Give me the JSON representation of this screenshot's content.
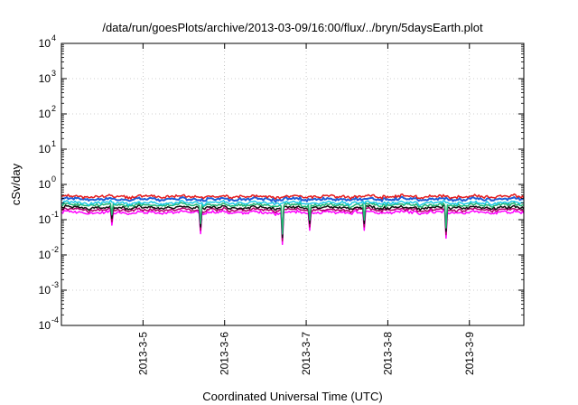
{
  "chart_data": {
    "type": "line",
    "title": "/data/run/goesPlots/archive/2013-03-09/16:00/flux/../bryn/5daysEarth.plot",
    "xlabel": "Coordinated Universal Time (UTC)",
    "ylabel": "cSv/day",
    "x_range": [
      "2013-03-04 00:00",
      "2013-03-09 16:00"
    ],
    "x_ticks": [
      "2013-3-5",
      "2013-3-6",
      "2013-3-7",
      "2013-3-8",
      "2013-3-9"
    ],
    "y_scale": "log",
    "ylim": [
      0.0001,
      10000
    ],
    "y_ticks": [
      {
        "base": "10",
        "exp": "4"
      },
      {
        "base": "10",
        "exp": "3"
      },
      {
        "base": "10",
        "exp": "2"
      },
      {
        "base": "10",
        "exp": "1"
      },
      {
        "base": "10",
        "exp": "0"
      },
      {
        "base": "10",
        "exp": "-1"
      },
      {
        "base": "10",
        "exp": "-2"
      },
      {
        "base": "10",
        "exp": "-3"
      },
      {
        "base": "10",
        "exp": "-4"
      }
    ],
    "grid": true,
    "series": [
      {
        "color": "#e41a1c",
        "level": 0.45
      },
      {
        "color": "#1f5fd6",
        "level": 0.38
      },
      {
        "color": "#1ec8e6",
        "level": 0.3
      },
      {
        "color": "#22b573",
        "level": 0.26
      },
      {
        "color": "#111111",
        "level": 0.22
      },
      {
        "color": "#b5006e",
        "level": 0.19
      },
      {
        "color": "#ff00ff",
        "level": 0.16
      }
    ],
    "dips": [
      {
        "x": "2013-03-04 15:00",
        "y": 0.07
      },
      {
        "x": "2013-03-05 17:00",
        "y": 0.04
      },
      {
        "x": "2013-03-06 17:00",
        "y": 0.02
      },
      {
        "x": "2013-03-07 01:00",
        "y": 0.05
      },
      {
        "x": "2013-03-07 17:00",
        "y": 0.05
      },
      {
        "x": "2013-03-08 17:00",
        "y": 0.03
      }
    ]
  }
}
